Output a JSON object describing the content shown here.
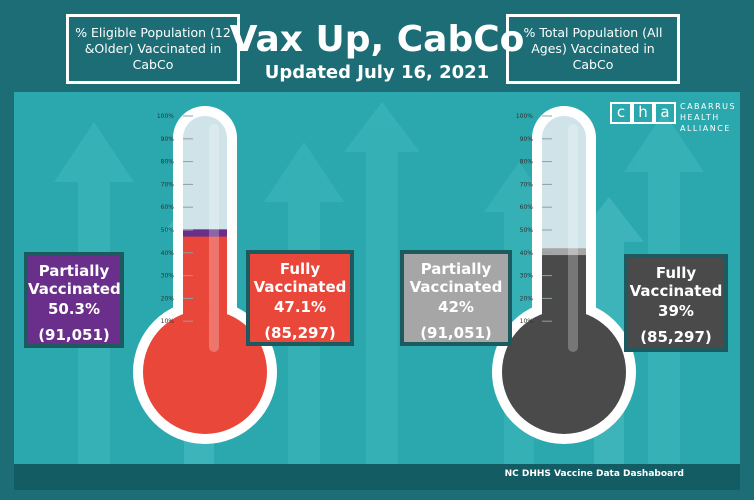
{
  "header": {
    "title": "Vax Up, CabCo",
    "subtitle": "Updated July 16, 2021",
    "left_box": "% Eligible Population (12 &Older) Vaccinated in CabCo",
    "right_box": "% Total Population (All Ages) Vaccinated in CabCo"
  },
  "logo": {
    "letters": [
      "c",
      "h",
      "a"
    ],
    "words": [
      "CABARRUS",
      "HEALTH",
      "ALLIANCE"
    ]
  },
  "stats": {
    "eligible_partial": {
      "label": "Partially Vaccinated",
      "pct": "50.3%",
      "count": "(91,051)"
    },
    "eligible_full": {
      "label": "Fully Vaccinated",
      "pct": "47.1%",
      "count": "(85,297)"
    },
    "total_partial": {
      "label": "Partially Vaccinated",
      "pct": "42%",
      "count": "(91,051)"
    },
    "total_full": {
      "label": "Fully Vaccinated",
      "pct": "39%",
      "count": "(85,297)"
    }
  },
  "footer": {
    "source": "NC DHHS Vaccine Data Dashaboard"
  },
  "colors": {
    "eligible_full": "#e8473a",
    "eligible_partial": "#6a2f8a",
    "total_full": "#4a4a4a",
    "total_partial": "#a6a6a6",
    "background": "#2aa8ad"
  },
  "chart_data": [
    {
      "type": "bar",
      "title": "% Eligible Population (12 &Older) Vaccinated in CabCo",
      "categories": [
        "Partially Vaccinated",
        "Fully Vaccinated"
      ],
      "values": [
        50.3,
        47.1
      ],
      "ylim": [
        0,
        100
      ],
      "ticks": [
        "10%",
        "20%",
        "30%",
        "40%",
        "50%",
        "60%",
        "70%",
        "80%",
        "90%",
        "100%"
      ]
    },
    {
      "type": "bar",
      "title": "% Total Population (All Ages) Vaccinated in CabCo",
      "categories": [
        "Partially Vaccinated",
        "Fully Vaccinated"
      ],
      "values": [
        42,
        39
      ],
      "ylim": [
        0,
        100
      ],
      "ticks": [
        "10%",
        "20%",
        "30%",
        "40%",
        "50%",
        "60%",
        "70%",
        "80%",
        "90%",
        "100%"
      ]
    }
  ]
}
